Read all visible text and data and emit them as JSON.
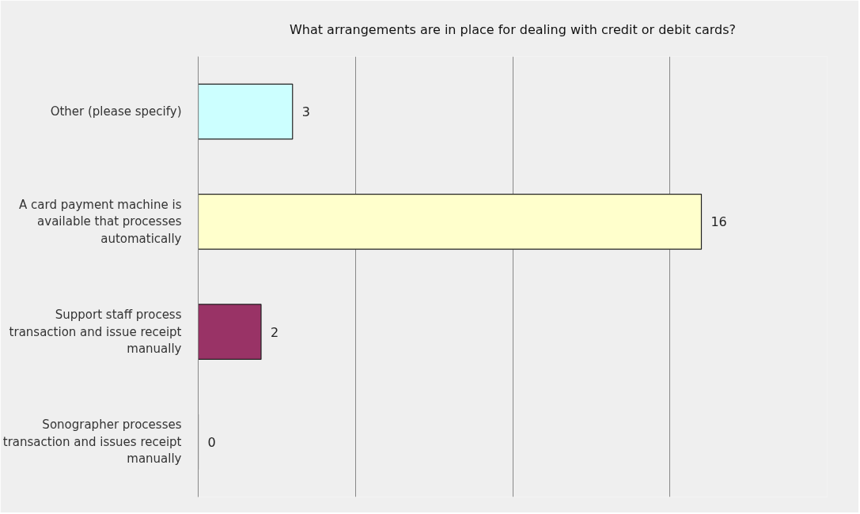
{
  "chart_data": {
    "type": "bar",
    "orientation": "horizontal",
    "title": "What arrangements are in place for dealing with credit or debit cards?",
    "categories": [
      "Other (please specify)",
      "A card payment machine is available that processes automatically",
      "Support staff process transaction and issue receipt manually",
      "Sonographer processes transaction and issues receipt manually"
    ],
    "values": [
      3,
      16,
      2,
      0
    ],
    "colors": [
      "#ccffff",
      "#ffffcc",
      "#993366",
      "#222222"
    ],
    "xlim": [
      0,
      20
    ],
    "xticks": [
      {
        "value": 0,
        "label": null
      },
      {
        "value": 5,
        "label": null
      },
      {
        "value": 10,
        "label": null
      },
      {
        "value": 15,
        "label": null
      },
      {
        "value": 20,
        "label": null
      }
    ],
    "tick_labels": "y",
    "grid": "x",
    "data_labels": true
  }
}
